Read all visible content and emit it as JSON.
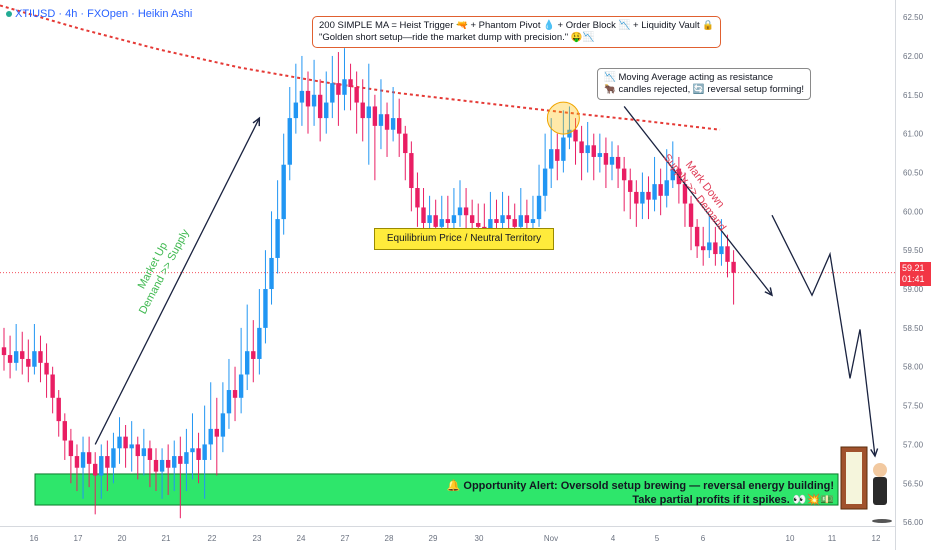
{
  "header": {
    "symbol": "XTIUSD · 4h · FXOpen · Heikin Ashi"
  },
  "annotations": {
    "top_note_line1": "200 SIMPLE MA = Heist Trigger 🔫 + Phantom Pivot 💧 + Order Block 📉 + Liquidity Vault 🔒",
    "top_note_line2": "\"Golden short setup—ride the market dump with precision.\" 🤑📉",
    "ma_note_line1": "📉 Moving Average acting as resistance",
    "ma_note_line2": "🐂 candles rejected, 🔄 reversal setup forming!",
    "equilibrium": "Equilibrium Price / Neutral Territory",
    "market_up_line1": "Market Up",
    "market_up_line2": "Demand >> Supply",
    "mark_down_line1": "Mark Down",
    "mark_down_line2": "Supply >> Demand",
    "alert_line1": "🔔 Opportunity Alert: Oversold setup brewing — reversal energy building!",
    "alert_line2": "Take partial profits if it spikes. 👀💥💵"
  },
  "price_tag": {
    "price": "59.21",
    "countdown": "01:41"
  },
  "colors": {
    "bull": "#2196f3",
    "bear": "#e91e63",
    "ma": "#e53935",
    "zone": "#2ee66b",
    "current_price": "#f23645"
  },
  "chart_data": {
    "type": "candlestick",
    "title": "XTIUSD · 4h · FXOpen · Heikin Ashi",
    "x_tick_labels": [
      "16",
      "17",
      "20",
      "21",
      "22",
      "23",
      "24",
      "27",
      "28",
      "29",
      "30",
      "Nov",
      "4",
      "5",
      "6",
      "10",
      "11",
      "12"
    ],
    "y_ticks": [
      56.0,
      56.5,
      57.0,
      57.5,
      58.0,
      58.5,
      59.0,
      59.5,
      60.0,
      60.5,
      61.0,
      61.5,
      62.0,
      62.5
    ],
    "ylim": [
      55.95,
      62.72
    ],
    "current_price": 59.21,
    "ma_label": "200 SIMPLE MA",
    "ma_points": [
      [
        0,
        62.65
      ],
      [
        80,
        62.35
      ],
      [
        160,
        62.08
      ],
      [
        240,
        61.85
      ],
      [
        320,
        61.67
      ],
      [
        400,
        61.52
      ],
      [
        480,
        61.4
      ],
      [
        560,
        61.28
      ],
      [
        640,
        61.17
      ],
      [
        720,
        61.05
      ]
    ],
    "demand_zone": [
      56.22,
      56.62
    ],
    "equilibrium_level": 59.78,
    "candles": [
      [
        58.25,
        58.15,
        58.5,
        57.95
      ],
      [
        58.15,
        58.05,
        58.4,
        57.85
      ],
      [
        58.05,
        58.2,
        58.55,
        57.95
      ],
      [
        58.2,
        58.1,
        58.45,
        57.9
      ],
      [
        58.1,
        58.0,
        58.35,
        57.8
      ],
      [
        58.0,
        58.2,
        58.55,
        57.9
      ],
      [
        58.2,
        58.05,
        58.4,
        57.8
      ],
      [
        58.05,
        57.9,
        58.3,
        57.6
      ],
      [
        57.9,
        57.6,
        58.0,
        57.4
      ],
      [
        57.6,
        57.3,
        57.7,
        57.1
      ],
      [
        57.3,
        57.05,
        57.4,
        56.8
      ],
      [
        57.05,
        56.85,
        57.2,
        56.5
      ],
      [
        56.85,
        56.7,
        57.0,
        56.4
      ],
      [
        56.7,
        56.9,
        57.1,
        56.3
      ],
      [
        56.9,
        56.75,
        57.1,
        56.45
      ],
      [
        56.75,
        56.6,
        56.9,
        56.1
      ],
      [
        56.6,
        56.85,
        57.0,
        56.3
      ],
      [
        56.85,
        56.7,
        57.05,
        56.4
      ],
      [
        56.7,
        56.95,
        57.15,
        56.5
      ],
      [
        56.95,
        57.1,
        57.35,
        56.75
      ],
      [
        57.1,
        56.95,
        57.25,
        56.7
      ],
      [
        56.95,
        57.0,
        57.3,
        56.65
      ],
      [
        57.0,
        56.85,
        57.1,
        56.55
      ],
      [
        56.85,
        56.95,
        57.2,
        56.6
      ],
      [
        56.95,
        56.8,
        57.05,
        56.45
      ],
      [
        56.8,
        56.65,
        56.95,
        56.4
      ],
      [
        56.65,
        56.8,
        56.95,
        56.3
      ],
      [
        56.8,
        56.7,
        57.0,
        56.35
      ],
      [
        56.7,
        56.85,
        57.05,
        56.4
      ],
      [
        56.85,
        56.75,
        57.1,
        56.05
      ],
      [
        56.75,
        56.9,
        57.2,
        56.4
      ],
      [
        56.9,
        56.95,
        57.4,
        56.55
      ],
      [
        56.95,
        56.8,
        57.15,
        56.5
      ],
      [
        56.8,
        57.0,
        57.5,
        56.3
      ],
      [
        57.0,
        57.2,
        57.8,
        56.8
      ],
      [
        57.2,
        57.1,
        57.6,
        56.6
      ],
      [
        57.1,
        57.4,
        57.8,
        56.9
      ],
      [
        57.4,
        57.7,
        58.1,
        57.2
      ],
      [
        57.7,
        57.6,
        58.0,
        57.3
      ],
      [
        57.6,
        57.9,
        58.5,
        57.4
      ],
      [
        57.9,
        58.2,
        58.8,
        57.7
      ],
      [
        58.2,
        58.1,
        58.6,
        57.8
      ],
      [
        58.1,
        58.5,
        59.0,
        57.9
      ],
      [
        58.5,
        59.0,
        59.5,
        58.3
      ],
      [
        59.0,
        59.4,
        60.0,
        58.8
      ],
      [
        59.4,
        59.9,
        60.4,
        59.2
      ],
      [
        59.9,
        60.6,
        61.0,
        59.7
      ],
      [
        60.6,
        61.2,
        61.6,
        60.4
      ],
      [
        61.2,
        61.4,
        61.9,
        61.0
      ],
      [
        61.4,
        61.55,
        62.0,
        61.1
      ],
      [
        61.55,
        61.35,
        61.8,
        61.0
      ],
      [
        61.35,
        61.5,
        61.95,
        61.1
      ],
      [
        61.5,
        61.2,
        61.7,
        60.9
      ],
      [
        61.2,
        61.4,
        61.8,
        61.0
      ],
      [
        61.4,
        61.65,
        62.0,
        61.2
      ],
      [
        61.65,
        61.5,
        62.05,
        61.1
      ],
      [
        61.5,
        61.7,
        62.1,
        61.3
      ],
      [
        61.7,
        61.6,
        61.9,
        61.3
      ],
      [
        61.6,
        61.4,
        61.8,
        61.0
      ],
      [
        61.4,
        61.2,
        61.7,
        60.9
      ],
      [
        61.2,
        61.35,
        61.9,
        60.6
      ],
      [
        61.35,
        61.1,
        61.5,
        60.4
      ],
      [
        61.1,
        61.25,
        61.7,
        60.8
      ],
      [
        61.25,
        61.05,
        61.4,
        60.7
      ],
      [
        61.05,
        61.2,
        61.6,
        60.9
      ],
      [
        61.2,
        61.0,
        61.45,
        60.7
      ],
      [
        61.0,
        60.75,
        61.1,
        60.4
      ],
      [
        60.75,
        60.3,
        60.9,
        60.0
      ],
      [
        60.3,
        60.05,
        60.5,
        59.8
      ],
      [
        60.05,
        59.85,
        60.3,
        59.6
      ],
      [
        59.85,
        59.95,
        60.2,
        59.7
      ],
      [
        59.95,
        59.8,
        60.15,
        59.6
      ],
      [
        59.8,
        59.9,
        60.2,
        59.65
      ],
      [
        59.9,
        59.85,
        60.2,
        59.7
      ],
      [
        59.85,
        59.95,
        60.3,
        59.7
      ],
      [
        59.95,
        60.05,
        60.4,
        59.8
      ],
      [
        60.05,
        59.95,
        60.3,
        59.75
      ],
      [
        59.95,
        59.85,
        60.15,
        59.7
      ],
      [
        59.85,
        59.8,
        60.1,
        59.6
      ],
      [
        59.8,
        59.75,
        60.1,
        59.6
      ],
      [
        59.75,
        59.9,
        60.25,
        59.7
      ],
      [
        59.9,
        59.85,
        60.15,
        59.65
      ],
      [
        59.85,
        59.95,
        60.25,
        59.7
      ],
      [
        59.95,
        59.9,
        60.2,
        59.75
      ],
      [
        59.9,
        59.8,
        60.1,
        59.65
      ],
      [
        59.8,
        59.95,
        60.3,
        59.7
      ],
      [
        59.95,
        59.85,
        60.15,
        59.7
      ],
      [
        59.85,
        59.9,
        60.2,
        59.75
      ],
      [
        59.9,
        60.2,
        60.6,
        59.8
      ],
      [
        60.2,
        60.55,
        61.0,
        60.0
      ],
      [
        60.55,
        60.8,
        61.2,
        60.3
      ],
      [
        60.8,
        60.65,
        61.0,
        60.4
      ],
      [
        60.65,
        60.95,
        61.3,
        60.5
      ],
      [
        60.95,
        61.05,
        61.35,
        60.8
      ],
      [
        61.05,
        60.9,
        61.2,
        60.6
      ],
      [
        60.9,
        60.75,
        61.1,
        60.4
      ],
      [
        60.75,
        60.85,
        61.15,
        60.5
      ],
      [
        60.85,
        60.7,
        61.0,
        60.4
      ],
      [
        60.7,
        60.75,
        61.0,
        60.5
      ],
      [
        60.75,
        60.6,
        60.95,
        60.3
      ],
      [
        60.6,
        60.7,
        60.9,
        60.4
      ],
      [
        60.7,
        60.55,
        60.85,
        60.3
      ],
      [
        60.55,
        60.4,
        60.7,
        60.0
      ],
      [
        60.4,
        60.25,
        60.55,
        59.9
      ],
      [
        60.25,
        60.1,
        60.4,
        59.8
      ],
      [
        60.1,
        60.25,
        60.5,
        59.9
      ],
      [
        60.25,
        60.15,
        60.45,
        59.9
      ],
      [
        60.15,
        60.35,
        60.7,
        60.0
      ],
      [
        60.35,
        60.2,
        60.55,
        59.95
      ],
      [
        60.2,
        60.4,
        60.8,
        60.05
      ],
      [
        60.4,
        60.55,
        60.9,
        60.3
      ],
      [
        60.55,
        60.35,
        60.7,
        60.1
      ],
      [
        60.35,
        60.1,
        60.5,
        59.8
      ],
      [
        60.1,
        59.8,
        60.2,
        59.5
      ],
      [
        59.8,
        59.55,
        59.9,
        59.4
      ],
      [
        59.55,
        59.5,
        59.8,
        59.3
      ],
      [
        59.5,
        59.6,
        59.95,
        59.4
      ],
      [
        59.6,
        59.45,
        59.8,
        59.3
      ],
      [
        59.45,
        59.55,
        59.9,
        59.3
      ],
      [
        59.55,
        59.35,
        59.7,
        59.15
      ],
      [
        59.35,
        59.21,
        59.5,
        58.8
      ]
    ],
    "projection_path": [
      [
        59.95,
        0
      ],
      [
        58.92,
        40
      ],
      [
        59.45,
        18
      ],
      [
        57.85,
        20
      ],
      [
        58.48,
        10
      ],
      [
        56.85,
        15
      ]
    ]
  }
}
